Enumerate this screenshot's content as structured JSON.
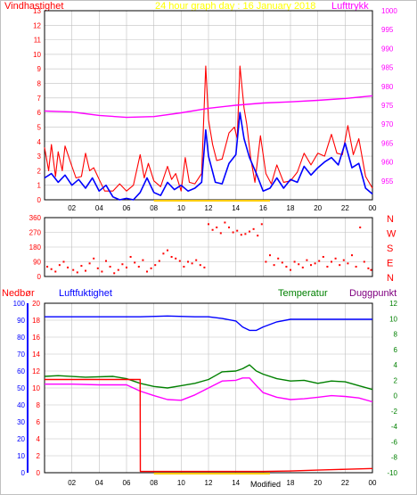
{
  "title": "24 hour graph day : 16 January 2018",
  "modified": "Modified",
  "colors": {
    "wind": "#ff0000",
    "gust": "#ff0000",
    "avg": "#0000ff",
    "pressure": "#ff00ff",
    "direction": "#ff0000",
    "rain": "#ff0000",
    "humidity": "#0000ff",
    "temperature": "#008000",
    "dewpoint": "#ff00ff",
    "daybar": "#ffcc00",
    "title": "#ffff00",
    "grid": "#c0c0c0"
  },
  "chart_data": [
    {
      "type": "line",
      "name": "wind-pressure",
      "labels": {
        "left": "Vindhastighet",
        "right": "Lufttrykk"
      },
      "x_ticks": [
        "02",
        "04",
        "06",
        "08",
        "10",
        "12",
        "14",
        "16",
        "18",
        "20",
        "22",
        "00"
      ],
      "y_left": {
        "min": 0,
        "max": 13,
        "ticks": [
          0,
          1,
          2,
          3,
          4,
          5,
          6,
          7,
          8,
          9,
          10,
          11,
          12,
          13
        ]
      },
      "y_right": {
        "min": 950,
        "max": 1000,
        "ticks": [
          955,
          960,
          965,
          970,
          975,
          980,
          985,
          990,
          995,
          1000
        ]
      },
      "series": [
        {
          "key": "gust",
          "x": [
            0,
            0.3,
            0.5,
            0.8,
            1,
            1.3,
            1.5,
            2,
            2.3,
            2.7,
            3,
            3.3,
            3.6,
            4,
            4.4,
            5,
            5.5,
            6,
            6.5,
            7,
            7.3,
            7.6,
            8,
            8.5,
            9,
            9.3,
            9.6,
            10,
            10.3,
            10.6,
            11,
            11.5,
            11.8,
            12,
            12.3,
            12.6,
            13,
            13.5,
            13.9,
            14.1,
            14.3,
            14.6,
            14.8,
            15.1,
            15.4,
            15.8,
            16.2,
            16.6,
            17,
            17.5,
            18,
            18.5,
            19,
            19.5,
            20,
            20.5,
            21,
            21.4,
            21.8,
            22.2,
            22.6,
            23,
            23.5,
            24
          ],
          "values": [
            3.6,
            2,
            3.8,
            1.6,
            3.3,
            2,
            3.7,
            2.3,
            1.5,
            1.6,
            3.2,
            2,
            2.2,
            1.4,
            0.6,
            0.6,
            1.1,
            0.6,
            1,
            3.1,
            1.5,
            2.5,
            1.3,
            0.9,
            2.3,
            1.4,
            1.8,
            0.6,
            2.9,
            1.2,
            1.1,
            1.8,
            9.2,
            5.5,
            3.8,
            2.7,
            2.8,
            4.6,
            5,
            4.2,
            9.2,
            6.3,
            5.2,
            2.8,
            1.2,
            4.4,
            1.8,
            1.1,
            2.4,
            1.2,
            1.3,
            1.9,
            3.2,
            2.4,
            3.2,
            3,
            4.5,
            3.2,
            3.1,
            5.1,
            3.1,
            4.2,
            1.6,
            0.8
          ]
        },
        {
          "key": "avg",
          "x": [
            0,
            0.5,
            1,
            1.5,
            2,
            2.5,
            3,
            3.5,
            4,
            4.5,
            5,
            5.5,
            6,
            6.5,
            7,
            7.5,
            8,
            8.5,
            9,
            9.5,
            10,
            10.5,
            11,
            11.5,
            11.8,
            12,
            12.5,
            13,
            13.5,
            14,
            14.3,
            14.6,
            15,
            15.5,
            16,
            16.5,
            17,
            17.5,
            18,
            18.5,
            19,
            19.5,
            20,
            20.5,
            21,
            21.5,
            22,
            22.5,
            23,
            23.5,
            24
          ],
          "values": [
            1.5,
            1.8,
            1.2,
            1.7,
            1,
            1.4,
            0.8,
            1.5,
            0.6,
            1,
            0.2,
            0,
            0.1,
            0,
            0.5,
            1.5,
            0.5,
            0.3,
            1.2,
            0.7,
            1,
            0.6,
            0.8,
            1.2,
            4.8,
            3,
            1.2,
            1.1,
            2.5,
            3.1,
            6,
            4.2,
            2.9,
            1.8,
            0.6,
            0.8,
            1.5,
            0.8,
            1.4,
            1.2,
            2.3,
            1.7,
            2.2,
            2.6,
            2.9,
            2.4,
            3.9,
            2.2,
            2.5,
            0.8,
            0.4
          ]
        },
        {
          "key": "pressure",
          "x": [
            0,
            2,
            4,
            6,
            8,
            10,
            12,
            14,
            16,
            18,
            20,
            22,
            24
          ],
          "values": [
            973.5,
            973.2,
            972.3,
            971.8,
            972,
            973,
            974.2,
            975,
            975.6,
            975.9,
            976.3,
            976.8,
            977.5
          ]
        }
      ]
    },
    {
      "type": "scatter",
      "name": "wind-direction",
      "y_ticks": [
        "360",
        "270",
        "180",
        "90",
        "0"
      ],
      "y_range": [
        0,
        360
      ],
      "right_labels": [
        "N",
        "W",
        "S",
        "E",
        "N"
      ],
      "series": [
        {
          "key": "direction",
          "x": [
            0.2,
            0.5,
            0.8,
            1.1,
            1.4,
            1.7,
            2.1,
            2.4,
            2.7,
            3,
            3.3,
            3.6,
            3.9,
            4.2,
            4.5,
            4.8,
            5.1,
            5.4,
            5.7,
            6,
            6.3,
            6.6,
            6.9,
            7.2,
            7.5,
            7.8,
            8.1,
            8.4,
            8.7,
            9,
            9.3,
            9.6,
            9.9,
            10.2,
            10.5,
            10.8,
            11.1,
            11.4,
            11.7,
            12,
            12.3,
            12.6,
            12.9,
            13.2,
            13.5,
            13.8,
            14.1,
            14.4,
            14.7,
            15,
            15.3,
            15.6,
            15.9,
            16.2,
            16.5,
            16.8,
            17.1,
            17.4,
            17.7,
            18,
            18.3,
            18.6,
            18.9,
            19.2,
            19.5,
            19.8,
            20.1,
            20.4,
            20.7,
            21,
            21.3,
            21.6,
            21.9,
            22.2,
            22.5,
            22.8,
            23.1,
            23.4,
            23.7,
            23.9
          ],
          "values": [
            60,
            45,
            30,
            70,
            90,
            55,
            40,
            25,
            65,
            35,
            80,
            110,
            50,
            30,
            95,
            60,
            20,
            40,
            75,
            55,
            120,
            85,
            60,
            100,
            30,
            50,
            70,
            95,
            140,
            160,
            120,
            110,
            95,
            60,
            90,
            80,
            100,
            70,
            55,
            320,
            285,
            300,
            265,
            330,
            300,
            270,
            280,
            255,
            260,
            275,
            290,
            250,
            320,
            90,
            130,
            70,
            110,
            85,
            60,
            40,
            90,
            75,
            55,
            100,
            70,
            80,
            95,
            120,
            60,
            90,
            110,
            70,
            100,
            80,
            130,
            60,
            300,
            90,
            50,
            40
          ]
        }
      ]
    },
    {
      "type": "line",
      "name": "rain-humidity-temp-dew",
      "labels": {
        "rain": "Nedbør",
        "humidity": "Luftfuktighet",
        "temperature": "Temperatur",
        "dewpoint": "Duggpunkt"
      },
      "x_ticks": [
        "02",
        "04",
        "06",
        "08",
        "10",
        "12",
        "14",
        "16",
        "18",
        "20",
        "22",
        "00"
      ],
      "y_left": {
        "min": 0,
        "max": 100,
        "ticks": [
          0,
          5,
          10,
          15,
          20,
          25,
          30,
          35,
          40,
          45,
          50,
          55,
          60,
          65,
          70,
          75,
          80,
          85,
          90,
          95,
          100
        ]
      },
      "y_rain": {
        "min": 0,
        "max": 20,
        "ticks": [
          0,
          2,
          4,
          6,
          8,
          10,
          12,
          14,
          16,
          18,
          20
        ]
      },
      "y_right": {
        "min": -10,
        "max": 12,
        "ticks": [
          -10,
          -8,
          -6,
          -4,
          -2,
          0,
          2,
          4,
          6,
          8,
          10,
          12
        ]
      },
      "series": [
        {
          "key": "humidity",
          "x": [
            0,
            4,
            7,
            9,
            11,
            12,
            13,
            14,
            14.5,
            15,
            15.5,
            16,
            17,
            18,
            20,
            22,
            24
          ],
          "values": [
            92,
            92,
            92,
            92.5,
            92,
            92,
            91,
            89.5,
            86,
            84,
            84,
            86,
            89,
            90.5,
            90.5,
            90.5,
            90.5
          ]
        },
        {
          "key": "temperature",
          "x": [
            0,
            1,
            3,
            5,
            6,
            7,
            8,
            9,
            10,
            11,
            12,
            12.5,
            13,
            14,
            14.5,
            15,
            15.5,
            16,
            17,
            18,
            19,
            20,
            21,
            22,
            23,
            24
          ],
          "values": [
            2.5,
            2.6,
            2.4,
            2.5,
            2.2,
            1.6,
            1.2,
            1.0,
            1.3,
            1.6,
            2.1,
            2.6,
            3.1,
            3.2,
            3.5,
            4,
            3.2,
            2.8,
            2.2,
            1.9,
            2,
            1.6,
            1.9,
            1.8,
            1.3,
            0.8
          ]
        },
        {
          "key": "dewpoint",
          "x": [
            0,
            2,
            4,
            6,
            7,
            8,
            9,
            10,
            11,
            12,
            13,
            14,
            14.5,
            15,
            15.5,
            16,
            17,
            18,
            19,
            20,
            21,
            22,
            23,
            24
          ],
          "values": [
            1.5,
            1.5,
            1.4,
            1.4,
            0.6,
            0,
            -0.5,
            -0.6,
            0.1,
            1,
            1.9,
            2,
            2.3,
            2.3,
            1.3,
            0.4,
            -0.2,
            -0.5,
            -0.4,
            -0.2,
            0,
            -0.1,
            -0.3,
            -0.8
          ]
        },
        {
          "key": "rain",
          "x": [
            0,
            7,
            7.01,
            16,
            18,
            20,
            22,
            24
          ],
          "values": [
            11,
            11,
            0.15,
            0.15,
            0.2,
            0.3,
            0.4,
            0.5
          ]
        }
      ]
    }
  ]
}
